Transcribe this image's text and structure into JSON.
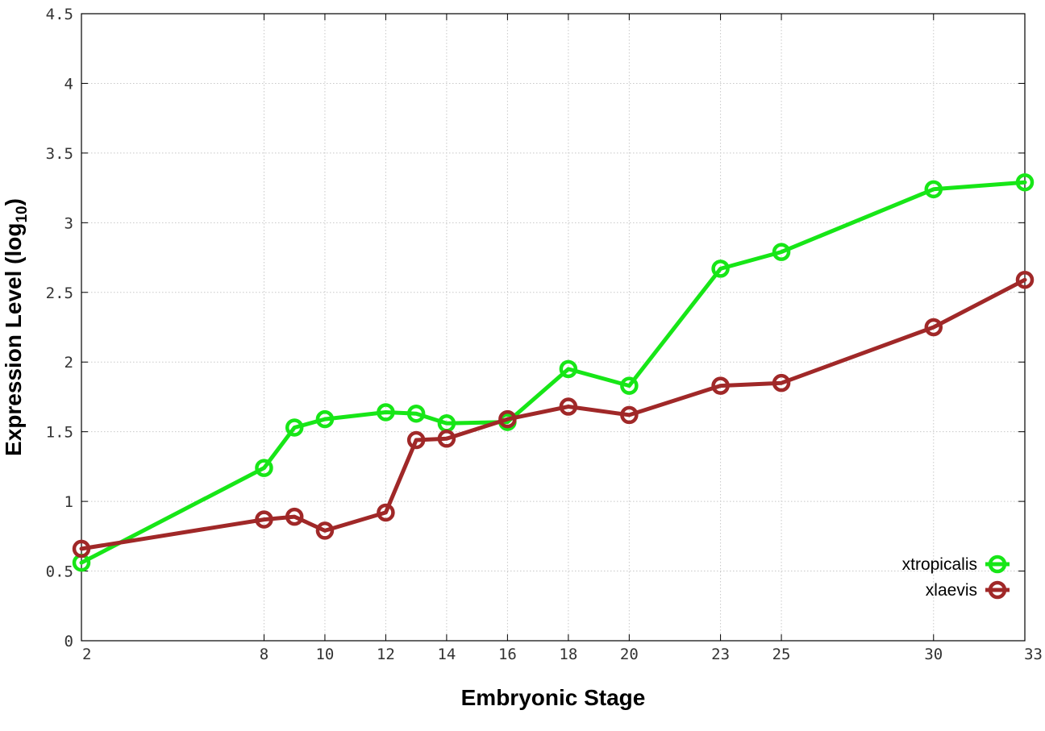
{
  "chart_data": {
    "type": "line",
    "title": "",
    "xlabel": "Embryonic Stage",
    "ylabel": "Expression Level (log",
    "ylabel_subscript": "10",
    "ylabel_close": ")",
    "xlim": [
      2,
      33
    ],
    "ylim": [
      0,
      4.5
    ],
    "x": [
      2,
      8,
      9,
      10,
      12,
      13,
      14,
      16,
      18,
      20,
      23,
      25,
      30,
      33
    ],
    "x_ticks": [
      "2",
      "8",
      "10",
      "12",
      "14",
      "16",
      "18",
      "20",
      "23",
      "25",
      "30",
      "33"
    ],
    "y_ticks": [
      "0",
      "0.5",
      "1",
      "1.5",
      "2",
      "2.5",
      "3",
      "3.5",
      "4",
      "4.5"
    ],
    "grid": true,
    "legend_position": "bottom-right",
    "series": [
      {
        "name": "xtropicalis",
        "color": "#17e617",
        "values": [
          0.56,
          1.24,
          1.53,
          1.59,
          1.64,
          1.63,
          1.56,
          1.57,
          1.95,
          1.83,
          2.67,
          2.79,
          3.24,
          3.29
        ]
      },
      {
        "name": "xlaevis",
        "color": "#a02828",
        "values": [
          0.66,
          0.87,
          0.89,
          0.79,
          0.92,
          1.44,
          1.45,
          1.59,
          1.68,
          1.62,
          1.83,
          1.85,
          2.25,
          2.59
        ]
      }
    ]
  }
}
